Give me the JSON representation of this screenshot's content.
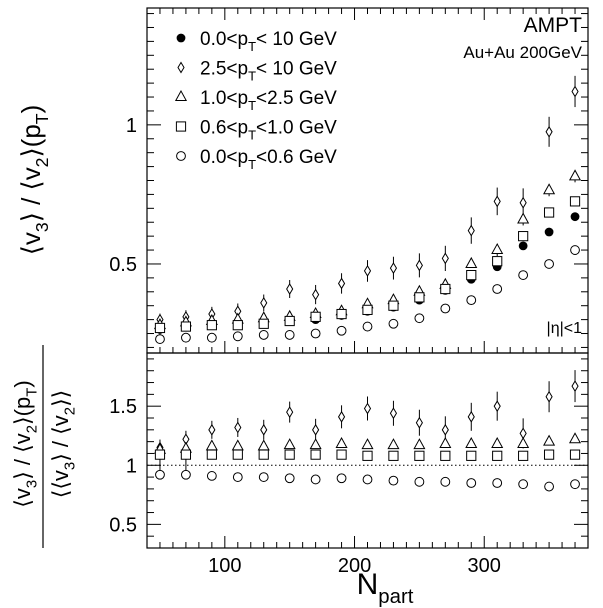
{
  "chart_data": [
    {
      "type": "scatter",
      "panel": "top",
      "annotations": [
        "AMPT",
        "Au+Au 200GeV",
        "|η|<1"
      ],
      "ylabel": {
        "main": "⟨v",
        "sub1": "3",
        "mid": "⟩ / ⟨v",
        "sub2": "2",
        "end": "⟩(p",
        "sub3": "T",
        "close": ")"
      },
      "ylim": [
        0.18,
        1.42
      ],
      "yticks": [
        0.5,
        1
      ],
      "ytick_labels": [
        "0.5",
        "1"
      ],
      "grid": false,
      "legend_position": "top-left",
      "series": [
        {
          "name": "0.0<pT< 10 GeV",
          "label": {
            "a": "0.0<p",
            "sub": "T",
            "b": "< 10 GeV"
          },
          "marker": "filled-circle",
          "x": [
            50,
            70,
            90,
            110,
            130,
            150,
            170,
            190,
            210,
            230,
            250,
            270,
            290,
            310,
            330,
            350,
            370
          ],
          "y": [
            0.265,
            0.28,
            0.285,
            0.285,
            0.29,
            0.295,
            0.3,
            0.315,
            0.33,
            0.345,
            0.37,
            0.405,
            0.445,
            0.49,
            0.565,
            0.615,
            0.67
          ]
        },
        {
          "name": "2.5<pT< 10 GeV",
          "label": {
            "a": "2.5<p",
            "sub": "T",
            "b": "< 10 GeV"
          },
          "marker": "open-diamond",
          "x": [
            50,
            70,
            90,
            110,
            130,
            150,
            170,
            190,
            210,
            230,
            250,
            270,
            290,
            310,
            330,
            350,
            370
          ],
          "y": [
            0.3,
            0.31,
            0.32,
            0.33,
            0.36,
            0.41,
            0.39,
            0.43,
            0.475,
            0.485,
            0.495,
            0.52,
            0.62,
            0.725,
            0.72,
            0.975,
            1.12
          ]
        },
        {
          "name": "1.0<pT<2.5 GeV",
          "label": {
            "a": "1.0<p",
            "sub": "T",
            "b": "<2.5 GeV"
          },
          "marker": "open-triangle",
          "x": [
            50,
            70,
            90,
            110,
            130,
            150,
            170,
            190,
            210,
            230,
            250,
            270,
            290,
            310,
            330,
            350,
            370
          ],
          "y": [
            0.28,
            0.29,
            0.295,
            0.3,
            0.305,
            0.31,
            0.32,
            0.33,
            0.355,
            0.37,
            0.4,
            0.425,
            0.5,
            0.55,
            0.66,
            0.765,
            0.815
          ]
        },
        {
          "name": "0.6<pT<1.0 GeV",
          "label": {
            "a": "0.6<p",
            "sub": "T",
            "b": "<1.0 GeV"
          },
          "marker": "open-square",
          "x": [
            50,
            70,
            90,
            110,
            130,
            150,
            170,
            190,
            210,
            230,
            250,
            270,
            290,
            310,
            330,
            350,
            370
          ],
          "y": [
            0.27,
            0.275,
            0.28,
            0.28,
            0.285,
            0.295,
            0.31,
            0.32,
            0.335,
            0.35,
            0.38,
            0.41,
            0.46,
            0.51,
            0.6,
            0.685,
            0.725
          ]
        },
        {
          "name": "0.0<pT<0.6 GeV",
          "label": {
            "a": "0.0<p",
            "sub": "T",
            "b": "<0.6 GeV"
          },
          "marker": "open-circle",
          "x": [
            50,
            70,
            90,
            110,
            130,
            150,
            170,
            190,
            210,
            230,
            250,
            270,
            290,
            310,
            330,
            350,
            370
          ],
          "y": [
            0.23,
            0.235,
            0.235,
            0.24,
            0.245,
            0.245,
            0.25,
            0.26,
            0.275,
            0.285,
            0.305,
            0.34,
            0.37,
            0.41,
            0.46,
            0.5,
            0.55
          ]
        }
      ]
    },
    {
      "type": "scatter",
      "panel": "bottom",
      "ylabel_numerator": {
        "main": "⟨v",
        "sub1": "3",
        "mid": "⟩ / ⟨v",
        "sub2": "2",
        "end": "⟩(p",
        "sub3": "T",
        "close": ")"
      },
      "ylabel_denominator": {
        "main": "⟨⟨v",
        "sub1": "3",
        "mid": "⟩ / ⟨v",
        "sub2": "2",
        "close": "⟩⟩"
      },
      "xlabel": {
        "main": "N",
        "sub": "part"
      },
      "xlim": [
        40,
        380
      ],
      "ylim": [
        0.3,
        1.95
      ],
      "xticks": [
        100,
        200,
        300
      ],
      "xtick_labels": [
        "100",
        "200",
        "300"
      ],
      "yticks": [
        0.5,
        1,
        1.5
      ],
      "ytick_labels": [
        "0.5",
        "1",
        "1.5"
      ],
      "reference_line": 1,
      "grid": false,
      "series": [
        {
          "name": "0.0<pT< 10 GeV",
          "marker": "filled-circle",
          "x": [
            50,
            70,
            90,
            110,
            130,
            150,
            170,
            190,
            210,
            230,
            250,
            270,
            290,
            310,
            330,
            350,
            370
          ],
          "y": [
            1,
            1,
            1,
            1,
            1,
            1,
            1,
            1,
            1,
            1,
            1,
            1,
            1,
            1,
            1,
            1,
            1
          ]
        },
        {
          "name": "2.5<pT< 10 GeV",
          "marker": "open-diamond",
          "x": [
            50,
            70,
            90,
            110,
            130,
            150,
            170,
            190,
            210,
            230,
            250,
            270,
            290,
            310,
            330,
            350,
            370
          ],
          "y": [
            1.15,
            1.22,
            1.3,
            1.32,
            1.3,
            1.45,
            1.3,
            1.41,
            1.48,
            1.44,
            1.36,
            1.3,
            1.41,
            1.5,
            1.27,
            1.58,
            1.67
          ]
        },
        {
          "name": "1.0<pT<2.5 GeV",
          "marker": "open-triangle",
          "x": [
            50,
            70,
            90,
            110,
            130,
            150,
            170,
            190,
            210,
            230,
            250,
            270,
            290,
            310,
            330,
            350,
            370
          ],
          "y": [
            1.13,
            1.14,
            1.16,
            1.16,
            1.16,
            1.17,
            1.17,
            1.18,
            1.17,
            1.17,
            1.17,
            1.18,
            1.18,
            1.18,
            1.18,
            1.2,
            1.22
          ]
        },
        {
          "name": "0.6<pT<1.0 GeV",
          "marker": "open-square",
          "x": [
            50,
            70,
            90,
            110,
            130,
            150,
            170,
            190,
            210,
            230,
            250,
            270,
            290,
            310,
            330,
            350,
            370
          ],
          "y": [
            1.09,
            1.09,
            1.09,
            1.09,
            1.09,
            1.09,
            1.09,
            1.09,
            1.08,
            1.08,
            1.08,
            1.08,
            1.08,
            1.08,
            1.08,
            1.09,
            1.09
          ]
        },
        {
          "name": "0.0<pT<0.6 GeV",
          "marker": "open-circle",
          "x": [
            50,
            70,
            90,
            110,
            130,
            150,
            170,
            190,
            210,
            230,
            250,
            270,
            290,
            310,
            330,
            350,
            370
          ],
          "y": [
            0.92,
            0.92,
            0.91,
            0.9,
            0.9,
            0.89,
            0.88,
            0.89,
            0.88,
            0.87,
            0.86,
            0.86,
            0.85,
            0.85,
            0.84,
            0.82,
            0.84
          ]
        }
      ]
    }
  ]
}
